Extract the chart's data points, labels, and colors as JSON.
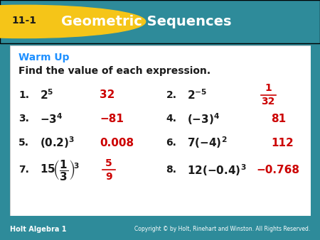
{
  "title_text": "Geometric Sequences",
  "lesson_num": "11-1",
  "header_bg": "#2E8B9A",
  "header_text_color": "#FFFFFF",
  "yellow_circle_color": "#F5C518",
  "warm_up_color": "#1E90FF",
  "content_bg": "#F5F5F5",
  "black_text": "#1a1a1a",
  "red_text": "#CC0000",
  "footer_bg": "#2E6B8A",
  "footer_text": "Holt Algebra 1",
  "copyright_text": "Copyright © by Holt, Rinehart and Winston. All Rights Reserved.",
  "warm_up_label": "Warm Up",
  "instruction": "Find the value of each expression.",
  "problems": [
    {
      "num": "1.",
      "expr": "2$^5$",
      "answer": "32"
    },
    {
      "num": "2.",
      "expr": "2$^{-5}$",
      "answer": "\\frac{1}{32}"
    },
    {
      "num": "3.",
      "expr": "−3$^4$",
      "answer": "−81"
    },
    {
      "num": "4.",
      "expr": "(−3)$^4$",
      "answer": "81"
    },
    {
      "num": "5.",
      "expr": "(0.2)$^3$",
      "answer": "0.008"
    },
    {
      "num": "6.",
      "expr": "7(−4)$^2$",
      "answer": "112"
    },
    {
      "num": "7.",
      "expr": "15$\\left(\\frac{1}{3}\\right)^3$",
      "answer": "\\frac{5}{9}"
    },
    {
      "num": "8.",
      "expr": "12(−0.4)$^3$",
      "answer": "−0.768"
    }
  ]
}
